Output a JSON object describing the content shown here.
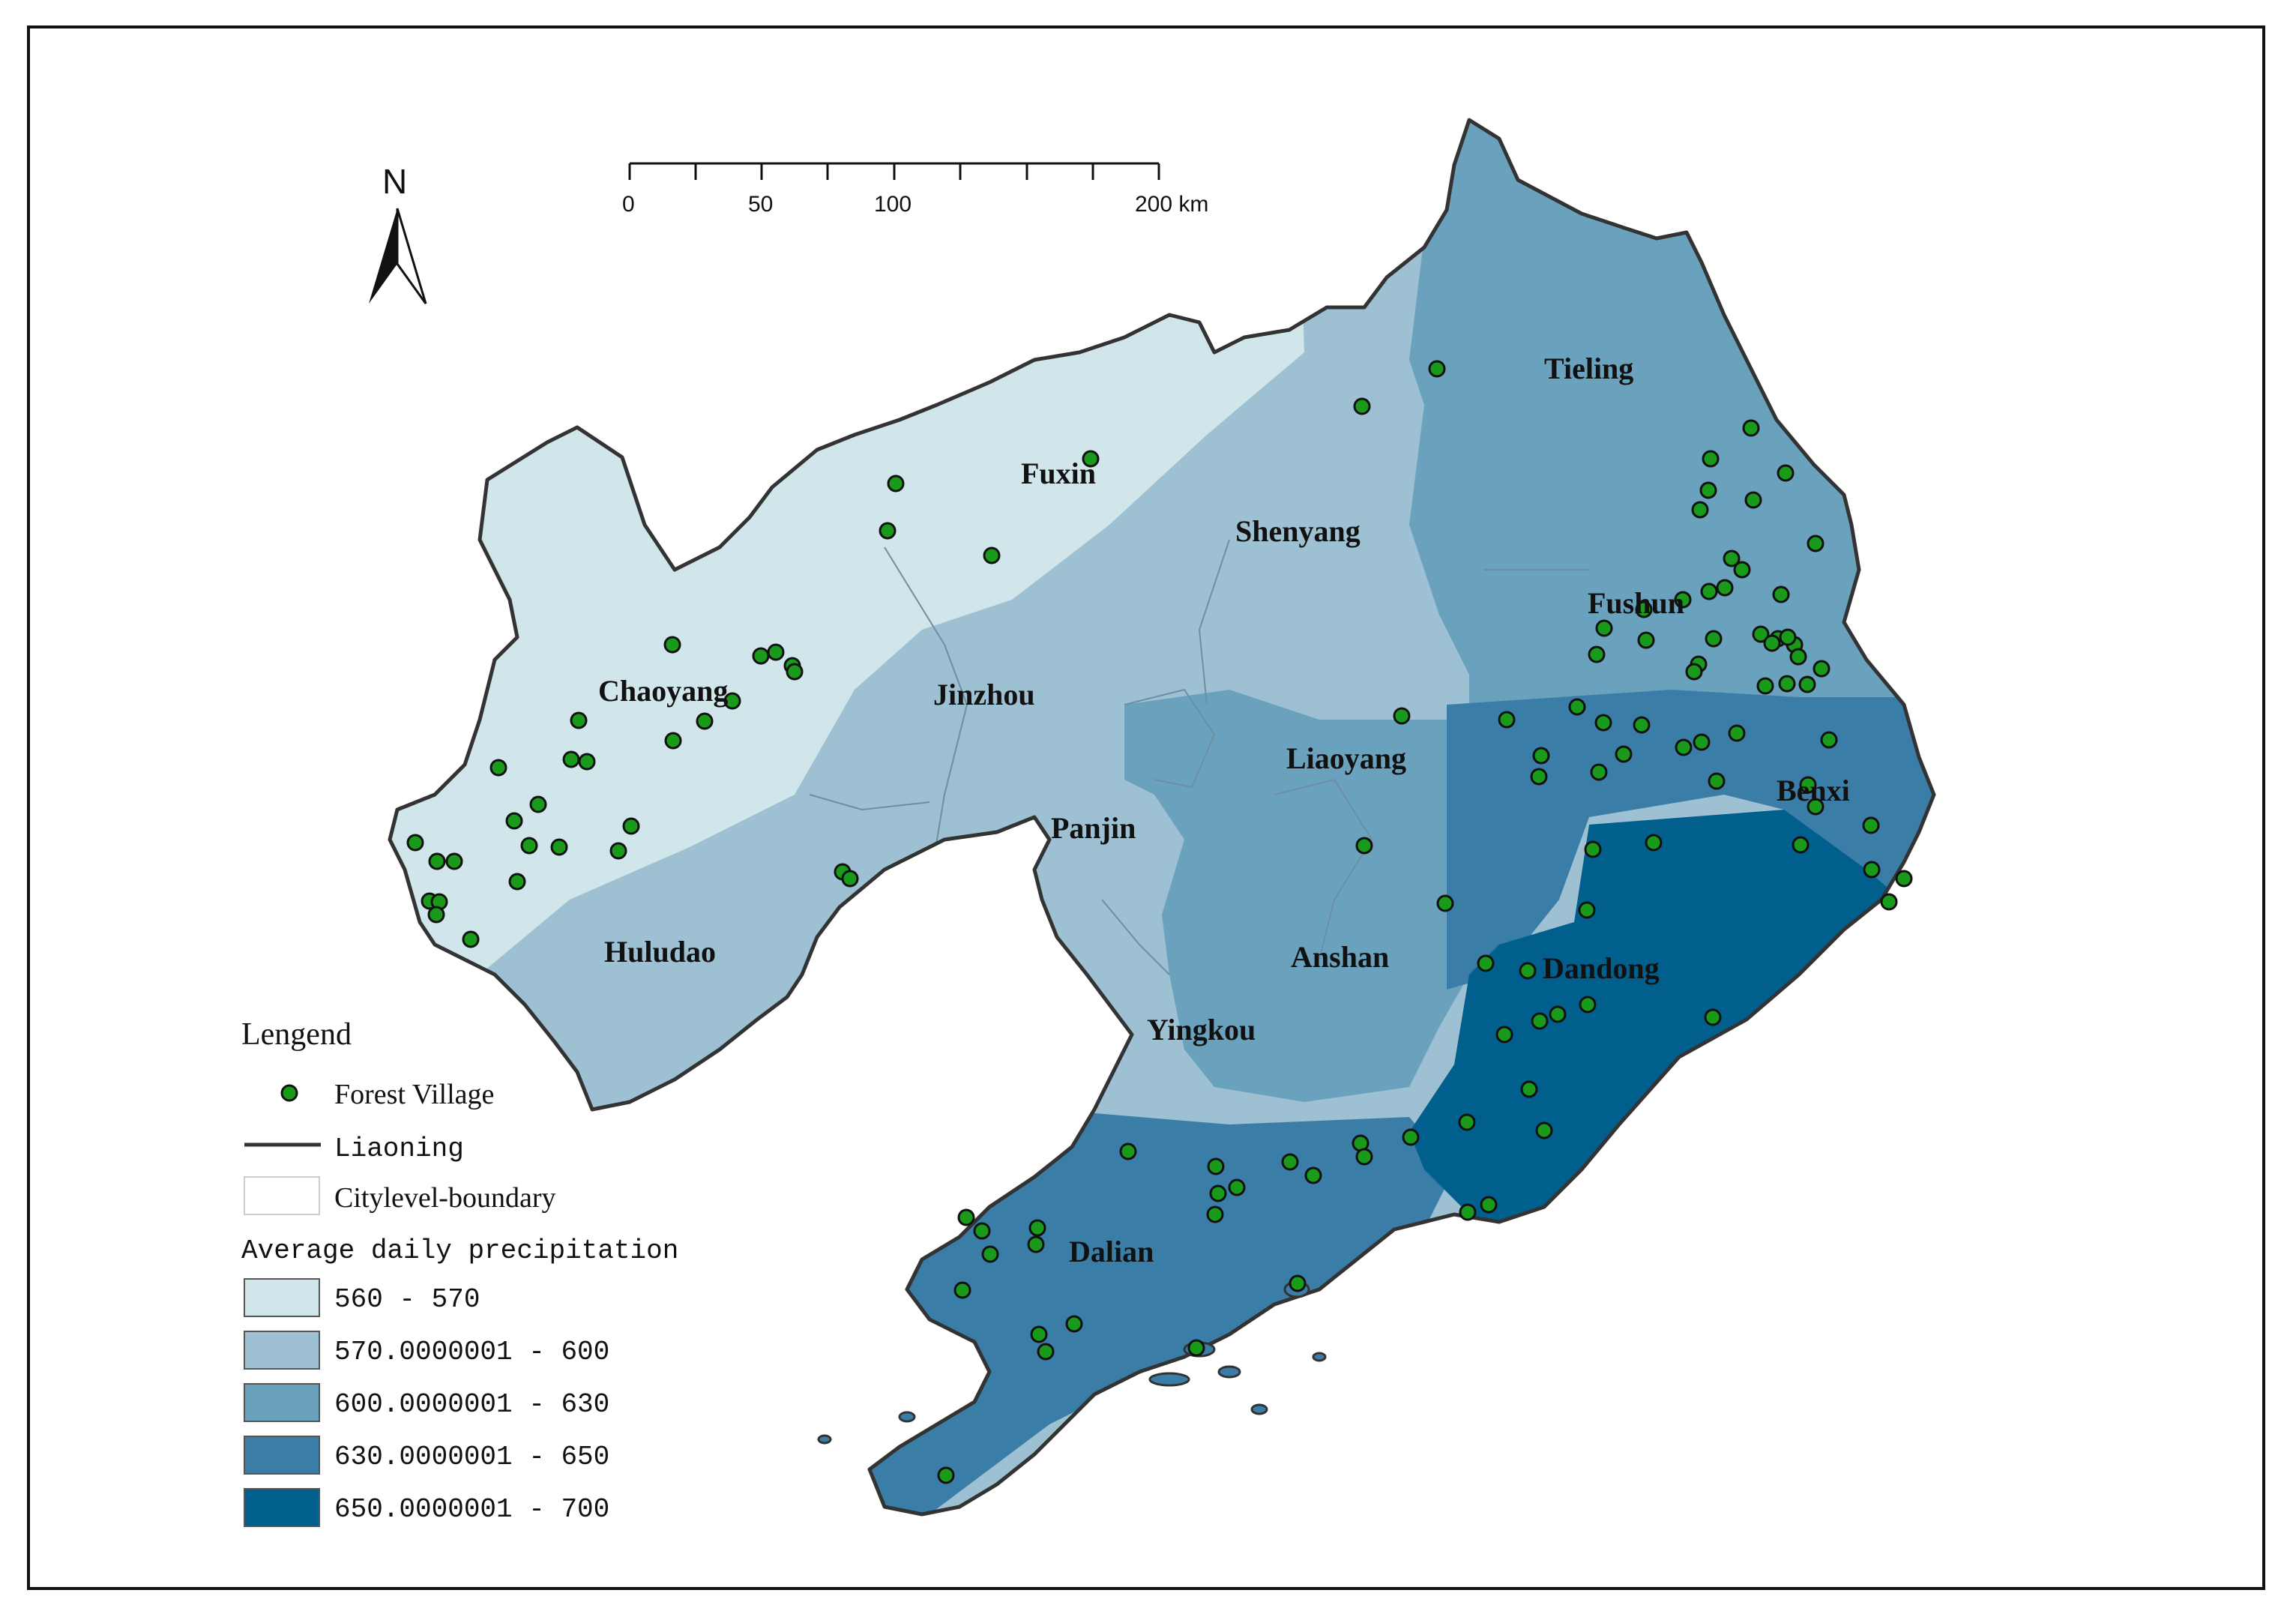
{
  "map": {
    "scale_bar": {
      "labels": [
        "0",
        "50",
        "100",
        "200 km"
      ]
    },
    "north_arrow": {
      "label": "N"
    },
    "cities": [
      {
        "id": "tieling",
        "name": "Tieling",
        "class": "600-630"
      },
      {
        "id": "fuxin",
        "name": "Fuxin",
        "class": "560-570"
      },
      {
        "id": "shenyang",
        "name": "Shenyang",
        "class": "570-600"
      },
      {
        "id": "fushun",
        "name": "Fushun",
        "class": "600-630"
      },
      {
        "id": "chaoyang",
        "name": "Chaoyang",
        "class": "560-570"
      },
      {
        "id": "jinzhou",
        "name": "Jinzhou",
        "class": "570-600"
      },
      {
        "id": "liaoyang",
        "name": "Liaoyang",
        "class": "600-630"
      },
      {
        "id": "benxi",
        "name": "Benxi",
        "class": "630-650"
      },
      {
        "id": "panjin",
        "name": "Panjin",
        "class": "570-600"
      },
      {
        "id": "huludao",
        "name": "Huludao",
        "class": "570-600"
      },
      {
        "id": "anshan",
        "name": "Anshan",
        "class": "600-630"
      },
      {
        "id": "dandong",
        "name": "Dandong",
        "class": "650-700"
      },
      {
        "id": "yingkou",
        "name": "Yingkou",
        "class": "570-600"
      },
      {
        "id": "dalian",
        "name": "Dalian",
        "class": "630-650"
      }
    ],
    "colors": {
      "class_560_570": "#d0e6ea",
      "class_570_600": "#9dc0d2",
      "class_600_630": "#6aa1bc",
      "class_630_650": "#3a7ea8",
      "class_650_700": "#005f8d",
      "village_fill": "#1a9a1a",
      "boundary": "#333333"
    }
  },
  "legend": {
    "title": "Lengend",
    "village_label": "Forest Village",
    "province_label": "Liaoning",
    "city_boundary_label": "Citylevel-boundary",
    "precip_title": "Average daily precipitation",
    "classes": [
      {
        "label": "560 - 570",
        "color": "#d0e6ea"
      },
      {
        "label": "570.0000001 - 600",
        "color": "#9dc0d2"
      },
      {
        "label": "600.0000001 - 630",
        "color": "#6aa1bc"
      },
      {
        "label": "630.0000001 - 650",
        "color": "#3a7ea8"
      },
      {
        "label": "650.0000001 - 700",
        "color": "#005f8d"
      }
    ]
  }
}
